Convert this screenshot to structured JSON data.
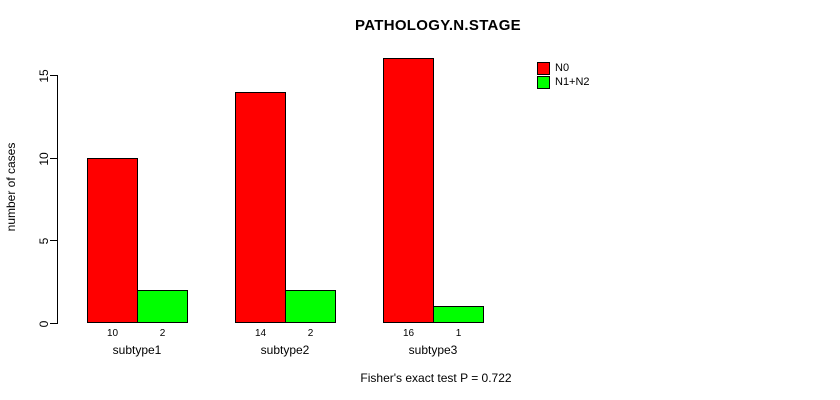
{
  "chart_data": {
    "type": "bar",
    "title": "PATHOLOGY.N.STAGE",
    "xlabel": "",
    "ylabel": "number of cases",
    "categories": [
      "subtype1",
      "subtype2",
      "subtype3"
    ],
    "series": [
      {
        "name": "N0",
        "color": "#ff0000",
        "values": [
          10,
          14,
          16
        ]
      },
      {
        "name": "N1+N2",
        "color": "#00ff00",
        "values": [
          2,
          2,
          1
        ]
      }
    ],
    "bar_value_labels": [
      [
        10,
        2
      ],
      [
        14,
        2
      ],
      [
        16,
        1
      ]
    ],
    "yticks": [
      0,
      5,
      10,
      15
    ],
    "ylim": [
      0,
      15
    ],
    "grid": false,
    "legend_position": "top-right",
    "annotation": "Fisher's exact test P = 0.722",
    "background": "#ffffff",
    "bar_border_color": "#000000"
  }
}
